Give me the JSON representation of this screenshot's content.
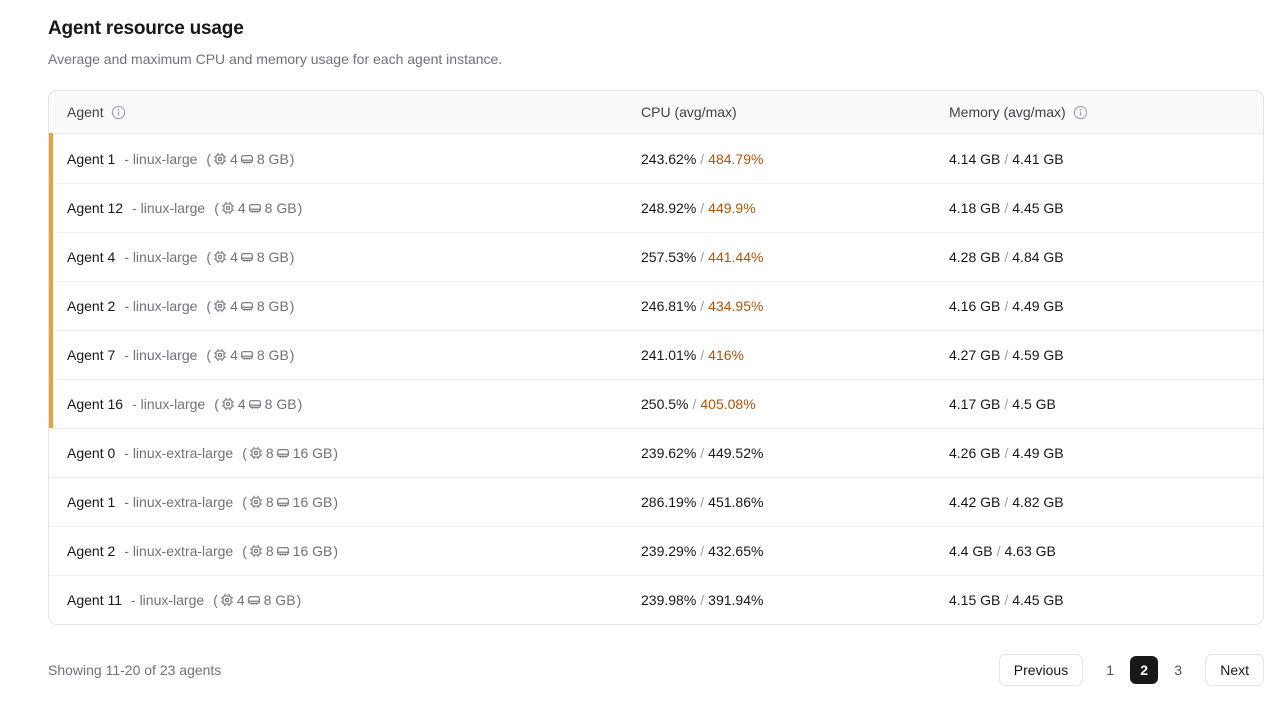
{
  "page": {
    "title": "Agent resource usage",
    "subtitle": "Average and maximum CPU and memory usage for each agent instance."
  },
  "table": {
    "columns": {
      "agent": "Agent",
      "cpu": "CPU (avg/max)",
      "memory": "Memory (avg/max)"
    },
    "type_separator": "-",
    "spec_open": "(",
    "spec_close": ")",
    "value_separator": "/",
    "rows": [
      {
        "name": "Agent 1",
        "type": "linux-large",
        "spec_cpu": "4",
        "spec_mem": "8 GB",
        "cpu_avg": "243.62%",
        "cpu_max": "484.79%",
        "cpu_max_hot": true,
        "flagged": true,
        "mem_avg": "4.14 GB",
        "mem_max": "4.41 GB"
      },
      {
        "name": "Agent 12",
        "type": "linux-large",
        "spec_cpu": "4",
        "spec_mem": "8 GB",
        "cpu_avg": "248.92%",
        "cpu_max": "449.9%",
        "cpu_max_hot": true,
        "flagged": true,
        "mem_avg": "4.18 GB",
        "mem_max": "4.45 GB"
      },
      {
        "name": "Agent 4",
        "type": "linux-large",
        "spec_cpu": "4",
        "spec_mem": "8 GB",
        "cpu_avg": "257.53%",
        "cpu_max": "441.44%",
        "cpu_max_hot": true,
        "flagged": true,
        "mem_avg": "4.28 GB",
        "mem_max": "4.84 GB"
      },
      {
        "name": "Agent 2",
        "type": "linux-large",
        "spec_cpu": "4",
        "spec_mem": "8 GB",
        "cpu_avg": "246.81%",
        "cpu_max": "434.95%",
        "cpu_max_hot": true,
        "flagged": true,
        "mem_avg": "4.16 GB",
        "mem_max": "4.49 GB"
      },
      {
        "name": "Agent 7",
        "type": "linux-large",
        "spec_cpu": "4",
        "spec_mem": "8 GB",
        "cpu_avg": "241.01%",
        "cpu_max": "416%",
        "cpu_max_hot": true,
        "flagged": true,
        "mem_avg": "4.27 GB",
        "mem_max": "4.59 GB"
      },
      {
        "name": "Agent 16",
        "type": "linux-large",
        "spec_cpu": "4",
        "spec_mem": "8 GB",
        "cpu_avg": "250.5%",
        "cpu_max": "405.08%",
        "cpu_max_hot": true,
        "flagged": true,
        "mem_avg": "4.17 GB",
        "mem_max": "4.5 GB"
      },
      {
        "name": "Agent 0",
        "type": "linux-extra-large",
        "spec_cpu": "8",
        "spec_mem": "16 GB",
        "cpu_avg": "239.62%",
        "cpu_max": "449.52%",
        "cpu_max_hot": false,
        "flagged": false,
        "mem_avg": "4.26 GB",
        "mem_max": "4.49 GB"
      },
      {
        "name": "Agent 1",
        "type": "linux-extra-large",
        "spec_cpu": "8",
        "spec_mem": "16 GB",
        "cpu_avg": "286.19%",
        "cpu_max": "451.86%",
        "cpu_max_hot": false,
        "flagged": false,
        "mem_avg": "4.42 GB",
        "mem_max": "4.82 GB"
      },
      {
        "name": "Agent 2",
        "type": "linux-extra-large",
        "spec_cpu": "8",
        "spec_mem": "16 GB",
        "cpu_avg": "239.29%",
        "cpu_max": "432.65%",
        "cpu_max_hot": false,
        "flagged": false,
        "mem_avg": "4.4 GB",
        "mem_max": "4.63 GB"
      },
      {
        "name": "Agent 11",
        "type": "linux-large",
        "spec_cpu": "4",
        "spec_mem": "8 GB",
        "cpu_avg": "239.98%",
        "cpu_max": "391.94%",
        "cpu_max_hot": false,
        "flagged": false,
        "mem_avg": "4.15 GB",
        "mem_max": "4.45 GB"
      }
    ]
  },
  "footer": {
    "summary": "Showing 11-20 of 23 agents",
    "previous_label": "Previous",
    "next_label": "Next",
    "pages": [
      "1",
      "2",
      "3"
    ],
    "active_page": "2"
  },
  "colors": {
    "accent_bar": "#E5A33B",
    "hot_cpu_text": "#B45309",
    "active_page_bg": "#18181b",
    "header_bg": "#fafafa",
    "table_border": "#e4e4e7"
  }
}
